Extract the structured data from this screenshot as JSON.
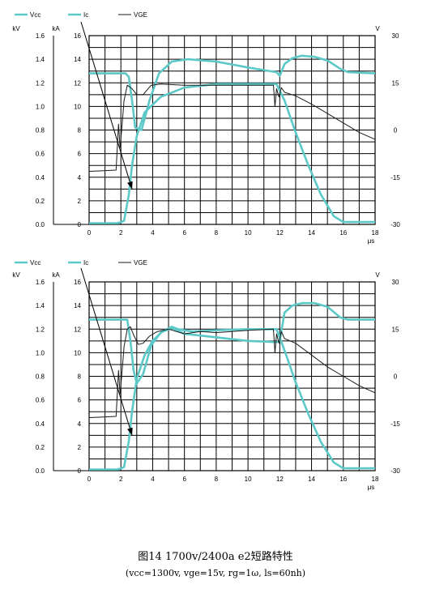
{
  "figure": {
    "caption_title": "图14 1700v/2400a e2短路特性",
    "caption_sub": "(vcc=1300v, vge=15v, rg=1ω, ls=60nh)"
  },
  "chart_data": [
    {
      "type": "line",
      "legend": [
        {
          "name": "Vcc",
          "color": "#5cc8c8"
        },
        {
          "name": "Ic",
          "color": "#5cc8c8"
        },
        {
          "name": "VGE",
          "color": "#1a1a1a"
        }
      ],
      "left_axis_unit": "kV",
      "left_ticks": [
        "0.0",
        "0.2",
        "0.4",
        "0.6",
        "0.8",
        "1.0",
        "1.2",
        "1.4",
        "1.6"
      ],
      "mid_axis_unit": "kA",
      "mid_ticks": [
        "0",
        "2",
        "4",
        "6",
        "8",
        "10",
        "12",
        "14",
        "16"
      ],
      "right_axis_unit": "V",
      "right_ticks": [
        "-30",
        "-15",
        "0",
        "15",
        "30"
      ],
      "x_unit": "μs",
      "x_ticks": [
        "0",
        "2",
        "4",
        "6",
        "8",
        "10",
        "12",
        "14",
        "16",
        "18"
      ],
      "xlim": [
        0,
        18
      ],
      "ylim_kA": [
        0,
        16
      ],
      "grid": true,
      "series": [
        {
          "name": "Vcc",
          "x": [
            0,
            2.3,
            2.5,
            2.7,
            2.9,
            3.3,
            3.8,
            4.4,
            5.2,
            6.2,
            8,
            10,
            11.8,
            12.0,
            12.3,
            12.8,
            13.4,
            14.2,
            15.0,
            15.8,
            16.3,
            18
          ],
          "y": [
            12.8,
            12.8,
            12.5,
            10.5,
            8.2,
            8.0,
            10.5,
            12.8,
            13.8,
            14.0,
            13.8,
            13.3,
            12.9,
            12.6,
            13.6,
            14.1,
            14.3,
            14.2,
            13.9,
            13.2,
            12.9,
            12.8
          ]
        },
        {
          "name": "Ic",
          "x": [
            0,
            1.8,
            2.2,
            2.5,
            2.7,
            3.0,
            3.5,
            4.5,
            6,
            8,
            10,
            11.8,
            12.3,
            13.0,
            13.8,
            14.6,
            15.4,
            16,
            18
          ],
          "y": [
            0.1,
            0.1,
            0.3,
            2.5,
            5.0,
            7.5,
            9.5,
            10.8,
            11.6,
            11.9,
            11.9,
            11.9,
            10.5,
            7.8,
            5.0,
            2.5,
            0.7,
            0.2,
            0.2
          ]
        },
        {
          "name": "VGE",
          "x": [
            0,
            1.7,
            1.85,
            1.95,
            2.05,
            2.2,
            2.4,
            2.7,
            3.0,
            3.4,
            3.9,
            4.5,
            6,
            8,
            10,
            11.6,
            11.7,
            11.8,
            11.95,
            12.1,
            12.3,
            13,
            14,
            15,
            16,
            17,
            18
          ],
          "y": [
            4.5,
            4.6,
            8.5,
            6.5,
            8.0,
            10.5,
            11.8,
            11.5,
            11.0,
            11.0,
            11.8,
            11.9,
            11.8,
            11.8,
            11.8,
            11.8,
            10.0,
            11.5,
            10.8,
            11.6,
            11.2,
            10.9,
            10.2,
            9.4,
            8.6,
            7.8,
            7.2
          ]
        }
      ]
    },
    {
      "type": "line",
      "legend": [
        {
          "name": "Vcc",
          "color": "#5cc8c8"
        },
        {
          "name": "Ic",
          "color": "#5cc8c8"
        },
        {
          "name": "VGE",
          "color": "#1a1a1a"
        }
      ],
      "left_axis_unit": "kV",
      "left_ticks": [
        "0.0",
        "0.2",
        "0.4",
        "0.6",
        "0.8",
        "1.0",
        "1.2",
        "1.4",
        "1.6"
      ],
      "mid_axis_unit": "kA",
      "mid_ticks": [
        "0",
        "2",
        "4",
        "6",
        "8",
        "10",
        "12",
        "14",
        "16"
      ],
      "right_axis_unit": "V",
      "right_ticks": [
        "-30",
        "-15",
        "0",
        "15",
        "30"
      ],
      "x_unit": "μs",
      "x_ticks": [
        "0",
        "2",
        "4",
        "6",
        "8",
        "10",
        "12",
        "14",
        "16",
        "18"
      ],
      "xlim": [
        0,
        18
      ],
      "ylim_kA": [
        0,
        16
      ],
      "grid": true,
      "series": [
        {
          "name": "Vcc",
          "x": [
            0,
            2.4,
            2.6,
            2.8,
            3.0,
            3.4,
            3.9,
            4.5,
            5.2,
            6,
            8,
            10,
            11.8,
            12.0,
            12.3,
            12.8,
            13.4,
            14.2,
            15.0,
            15.8,
            16.3,
            18
          ],
          "y": [
            12.8,
            12.8,
            11.0,
            8.5,
            7.4,
            8.2,
            10.6,
            11.7,
            12.1,
            11.6,
            11.3,
            11.0,
            10.9,
            11.0,
            13.4,
            14.0,
            14.2,
            14.2,
            13.9,
            13.0,
            12.8,
            12.8
          ]
        },
        {
          "name": "Ic",
          "x": [
            0,
            1.8,
            2.2,
            2.5,
            2.7,
            3.0,
            3.5,
            4.0,
            4.6,
            5.2,
            5.6,
            6.5,
            8,
            10,
            11.8,
            12.3,
            13.0,
            13.8,
            14.6,
            15.4,
            16,
            18
          ],
          "y": [
            0.1,
            0.1,
            0.3,
            2.5,
            5.0,
            7.8,
            9.8,
            11.0,
            11.8,
            12.2,
            12.0,
            11.8,
            11.9,
            12.0,
            12.0,
            10.2,
            7.5,
            4.8,
            2.4,
            0.7,
            0.2,
            0.2
          ]
        },
        {
          "name": "VGE",
          "x": [
            0,
            1.7,
            1.85,
            1.95,
            2.05,
            2.2,
            2.4,
            2.6,
            2.8,
            3.1,
            3.4,
            3.8,
            4.3,
            5,
            6,
            7,
            8,
            10,
            11.6,
            11.7,
            11.8,
            11.95,
            12.1,
            12.3,
            13,
            14,
            15,
            16,
            17,
            18
          ],
          "y": [
            4.5,
            4.6,
            8.5,
            6.5,
            8.0,
            10.5,
            12.0,
            12.2,
            11.5,
            10.7,
            10.8,
            11.4,
            11.8,
            12.0,
            11.6,
            11.8,
            11.7,
            11.9,
            12.0,
            10.0,
            11.6,
            10.8,
            11.8,
            11.2,
            10.8,
            9.8,
            8.8,
            8.0,
            7.2,
            6.6
          ]
        }
      ]
    }
  ]
}
